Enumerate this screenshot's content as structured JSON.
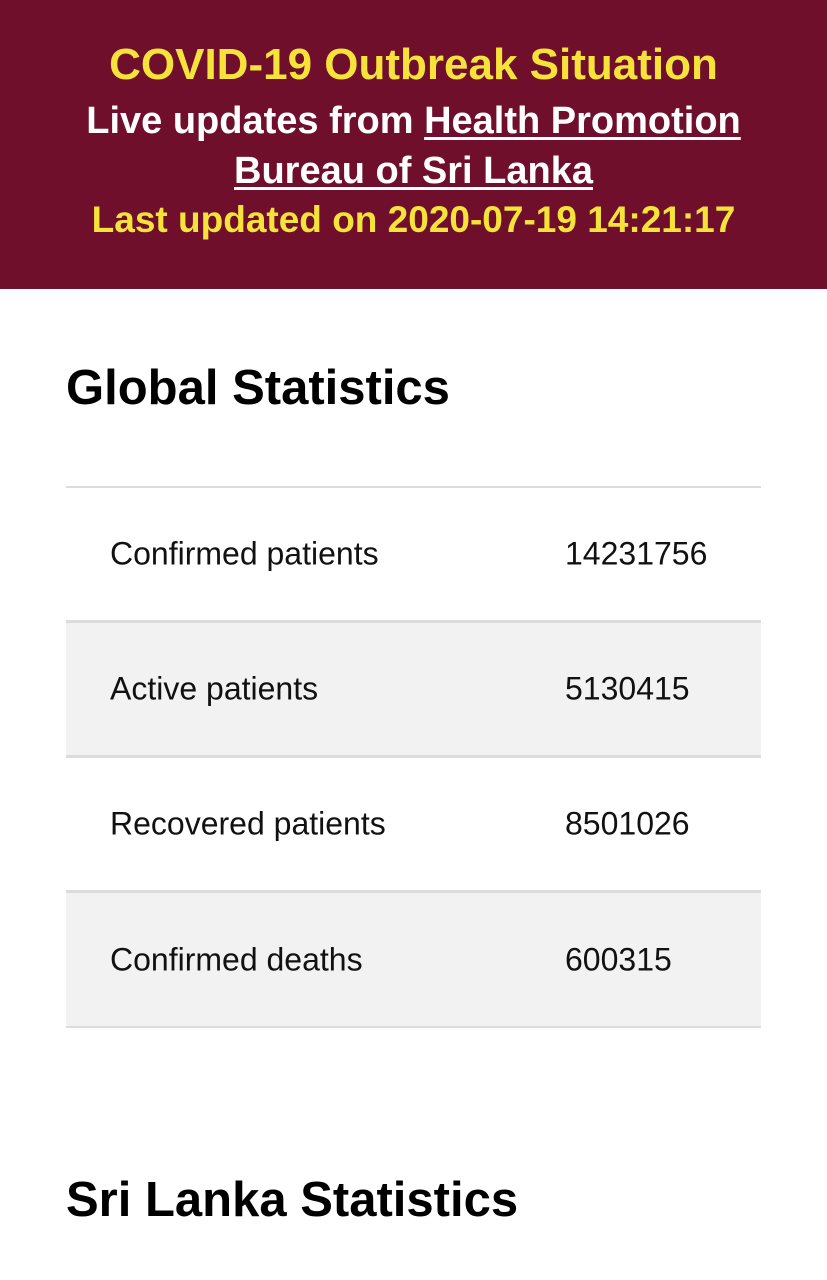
{
  "header": {
    "title": "COVID-19 Outbreak Situation",
    "live_prefix": "Live updates from ",
    "source_link_line1": "Health Promotion",
    "source_link_line2": "Bureau of Sri Lanka",
    "last_updated": "Last updated on 2020-07-19 14:21:17"
  },
  "global": {
    "title": "Global Statistics",
    "rows": [
      {
        "label": "Confirmed patients",
        "value": "14231756"
      },
      {
        "label": "Active patients",
        "value": "5130415"
      },
      {
        "label": "Recovered patients",
        "value": "8501026"
      },
      {
        "label": "Confirmed deaths",
        "value": "600315"
      }
    ]
  },
  "sri_lanka": {
    "title": "Sri Lanka Statistics"
  },
  "colors": {
    "header_bg": "#6f0f2c",
    "accent_yellow": "#f6e33a",
    "row_alt_bg": "#f2f2f2"
  }
}
